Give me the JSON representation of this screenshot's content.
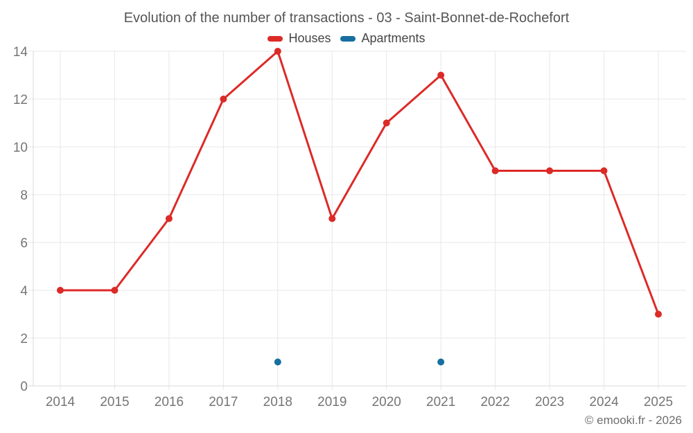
{
  "title": "Evolution of the number of transactions - 03 - Saint-Bonnet-de-Rochefort",
  "legend": {
    "items": [
      {
        "label": "Houses",
        "color": "#dc2a27"
      },
      {
        "label": "Apartments",
        "color": "#176fa1"
      }
    ]
  },
  "footer": "© emooki.fr - 2026",
  "colors": {
    "grid": "#e7e7e7",
    "axis": "#d9d9d9",
    "tick_label": "#757575",
    "houses": "#dc2a27",
    "apartments": "#176fa1"
  },
  "chart_data": {
    "type": "line",
    "title": "Evolution of the number of transactions - 03 - Saint-Bonnet-de-Rochefort",
    "x": [
      "2014",
      "2015",
      "2016",
      "2017",
      "2018",
      "2019",
      "2020",
      "2021",
      "2022",
      "2023",
      "2024",
      "2025"
    ],
    "series": [
      {
        "name": "Houses",
        "color": "#dc2a27",
        "show_line": true,
        "values": [
          4,
          4,
          7,
          12,
          14,
          7,
          11,
          13,
          9,
          9,
          9,
          3
        ]
      },
      {
        "name": "Apartments",
        "color": "#176fa1",
        "show_line": false,
        "values": [
          null,
          null,
          null,
          null,
          1,
          null,
          null,
          1,
          null,
          null,
          null,
          null
        ]
      }
    ],
    "xlabel": "",
    "ylabel": "",
    "ylim": [
      0,
      14
    ],
    "yticks": [
      0,
      2,
      4,
      6,
      8,
      10,
      12,
      14
    ],
    "grid": true,
    "legend_position": "top"
  }
}
